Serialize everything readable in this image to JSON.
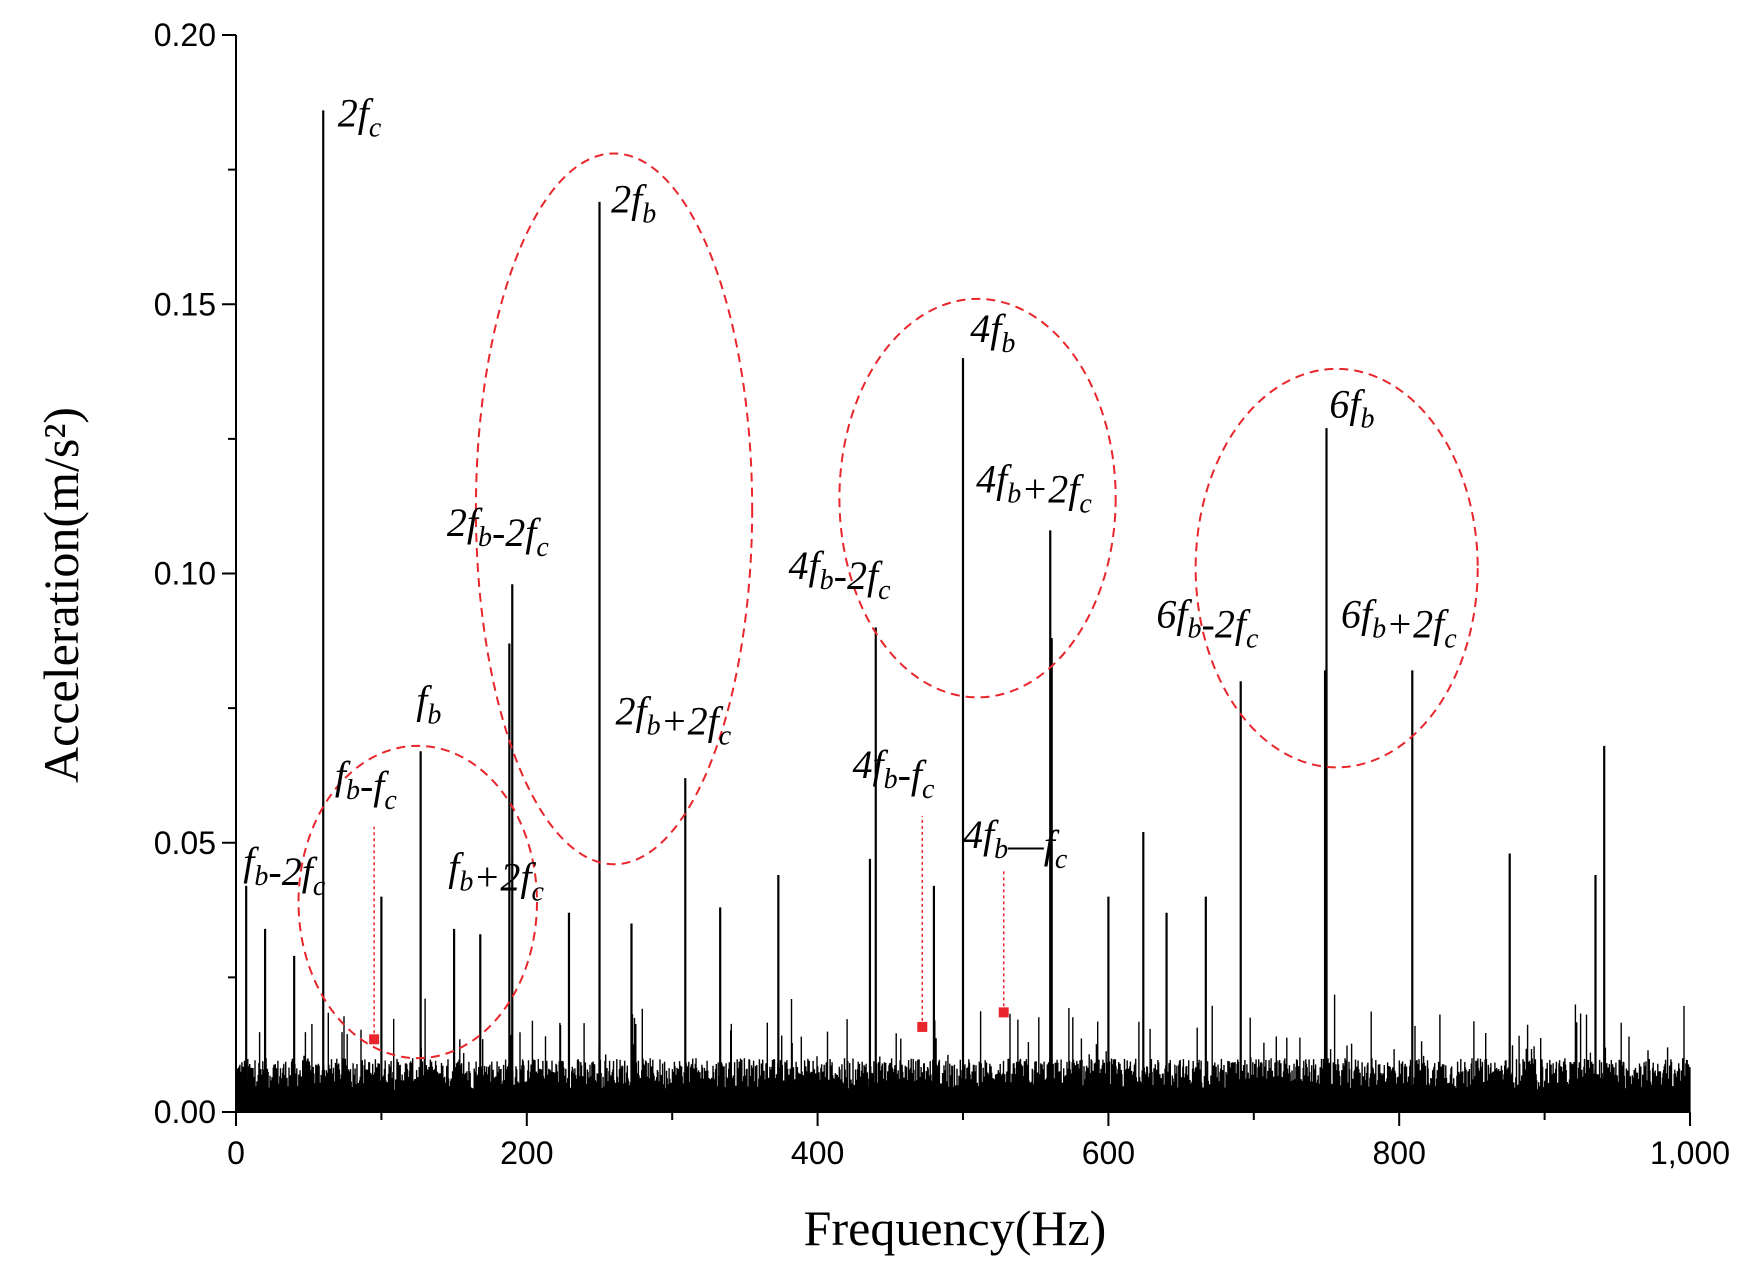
{
  "chart_data": {
    "type": "spectrum",
    "xlabel": "Frequency(Hz)",
    "ylabel": "Acceleration(m/s²)",
    "xlim": [
      0,
      1000
    ],
    "ylim": [
      0,
      0.2
    ],
    "x_ticks": [
      0,
      200,
      400,
      600,
      800,
      1000
    ],
    "x_tick_labels": [
      "0",
      "200",
      "400",
      "600",
      "800",
      "1,000"
    ],
    "y_ticks": [
      0,
      0.05,
      0.1,
      0.15,
      0.2
    ],
    "y_tick_labels": [
      "0.00",
      "0.05",
      "0.10",
      "0.15",
      "0.20"
    ],
    "colors": {
      "spectrum": "#000000",
      "circles": "#e8262b",
      "markers": "#e8262b"
    },
    "peaks": [
      {
        "x": 60,
        "y": 0.186
      },
      {
        "x": 127,
        "y": 0.067
      },
      {
        "x": 190,
        "y": 0.098
      },
      {
        "x": 188,
        "y": 0.087
      },
      {
        "x": 250,
        "y": 0.169
      },
      {
        "x": 309,
        "y": 0.062
      },
      {
        "x": 440,
        "y": 0.09
      },
      {
        "x": 500,
        "y": 0.14
      },
      {
        "x": 560,
        "y": 0.108
      },
      {
        "x": 561,
        "y": 0.088
      },
      {
        "x": 691,
        "y": 0.08
      },
      {
        "x": 750,
        "y": 0.127
      },
      {
        "x": 749,
        "y": 0.082
      },
      {
        "x": 809,
        "y": 0.082
      },
      {
        "x": 941,
        "y": 0.068
      },
      {
        "x": 7,
        "y": 0.042
      },
      {
        "x": 20,
        "y": 0.034
      },
      {
        "x": 40,
        "y": 0.029
      },
      {
        "x": 100,
        "y": 0.04
      },
      {
        "x": 150,
        "y": 0.034
      },
      {
        "x": 168,
        "y": 0.033
      },
      {
        "x": 229,
        "y": 0.037
      },
      {
        "x": 272,
        "y": 0.035
      },
      {
        "x": 333,
        "y": 0.038
      },
      {
        "x": 373,
        "y": 0.044
      },
      {
        "x": 436,
        "y": 0.047
      },
      {
        "x": 480,
        "y": 0.042
      },
      {
        "x": 600,
        "y": 0.04
      },
      {
        "x": 624,
        "y": 0.052
      },
      {
        "x": 640,
        "y": 0.037
      },
      {
        "x": 667,
        "y": 0.04
      },
      {
        "x": 876,
        "y": 0.048
      },
      {
        "x": 935,
        "y": 0.044
      }
    ],
    "circles": [
      {
        "cx": 125,
        "cy": 0.039,
        "rx": 82,
        "ry": 0.029
      },
      {
        "cx": 260,
        "cy": 0.112,
        "rx": 95,
        "ry": 0.066
      },
      {
        "cx": 510,
        "cy": 0.114,
        "rx": 95,
        "ry": 0.037
      },
      {
        "cx": 757,
        "cy": 0.101,
        "rx": 97,
        "ry": 0.037
      }
    ],
    "markers": [
      {
        "x": 95,
        "y": 0.0135
      },
      {
        "x": 472,
        "y": 0.0158
      },
      {
        "x": 528,
        "y": 0.0185
      }
    ],
    "annotations": [
      {
        "id": "2fc",
        "coef": "2",
        "a": "f",
        "a_sub": "c",
        "x": 70,
        "y": 0.183
      },
      {
        "id": "2fb",
        "coef": "2",
        "a": "f",
        "a_sub": "b",
        "x": 258,
        "y": 0.167
      },
      {
        "id": "4fb",
        "coef": "4",
        "a": "f",
        "a_sub": "b",
        "x": 505,
        "y": 0.143
      },
      {
        "id": "6fb",
        "coef": "6",
        "a": "f",
        "a_sub": "b",
        "x": 752,
        "y": 0.129
      },
      {
        "id": "2fb-2fc",
        "coef": "2",
        "a": "f",
        "a_sub": "b",
        "op": "-",
        "coef2": "2",
        "b": "f",
        "b_sub": "c",
        "x": 145,
        "y": 0.107
      },
      {
        "id": "4fb+2fc",
        "coef": "4",
        "a": "f",
        "a_sub": "b",
        "op": "+",
        "coef2": "2",
        "b": "f",
        "b_sub": "c",
        "x": 509,
        "y": 0.115
      },
      {
        "id": "4fb-2fc",
        "coef": "4",
        "a": "f",
        "a_sub": "b",
        "op": "-",
        "coef2": "2",
        "b": "f",
        "b_sub": "c",
        "x": 380,
        "y": 0.099
      },
      {
        "id": "6fb-2fc",
        "coef": "6",
        "a": "f",
        "a_sub": "b",
        "op": "-",
        "coef2": "2",
        "b": "f",
        "b_sub": "c",
        "x": 633,
        "y": 0.09
      },
      {
        "id": "6fb+2fc",
        "coef": "6",
        "a": "f",
        "a_sub": "b",
        "op": "+",
        "coef2": "2",
        "b": "f",
        "b_sub": "c",
        "x": 760,
        "y": 0.09
      },
      {
        "id": "2fb+2fc",
        "coef": "2",
        "a": "f",
        "a_sub": "b",
        "op": "+",
        "coef2": "2",
        "b": "f",
        "b_sub": "c",
        "x": 261,
        "y": 0.072
      },
      {
        "id": "fb",
        "coef": "",
        "a": "f",
        "a_sub": "b",
        "x": 124,
        "y": 0.074
      },
      {
        "id": "fb-fc",
        "coef": "",
        "a": "f",
        "a_sub": "b",
        "op": "-",
        "coef2": "",
        "b": "f",
        "b_sub": "c",
        "x": 68,
        "y": 0.06
      },
      {
        "id": "fb-2fc",
        "coef": "",
        "a": "f",
        "a_sub": "b",
        "op": "-",
        "coef2": "2",
        "b": "f",
        "b_sub": "c",
        "x": 5,
        "y": 0.044
      },
      {
        "id": "fb+2fc",
        "coef": "",
        "a": "f",
        "a_sub": "b",
        "op": "+",
        "coef2": "2",
        "b": "f",
        "b_sub": "c",
        "x": 146,
        "y": 0.043
      },
      {
        "id": "4fb-fc",
        "coef": "4",
        "a": "f",
        "a_sub": "b",
        "op": "-",
        "coef2": "",
        "b": "f",
        "b_sub": "c",
        "x": 424,
        "y": 0.062
      },
      {
        "id": "4fb-fc-2",
        "coef": "4",
        "a": "f",
        "a_sub": "b",
        "op": "—",
        "coef2": "",
        "b": "f",
        "b_sub": "c",
        "x": 500,
        "y": 0.049
      }
    ]
  }
}
